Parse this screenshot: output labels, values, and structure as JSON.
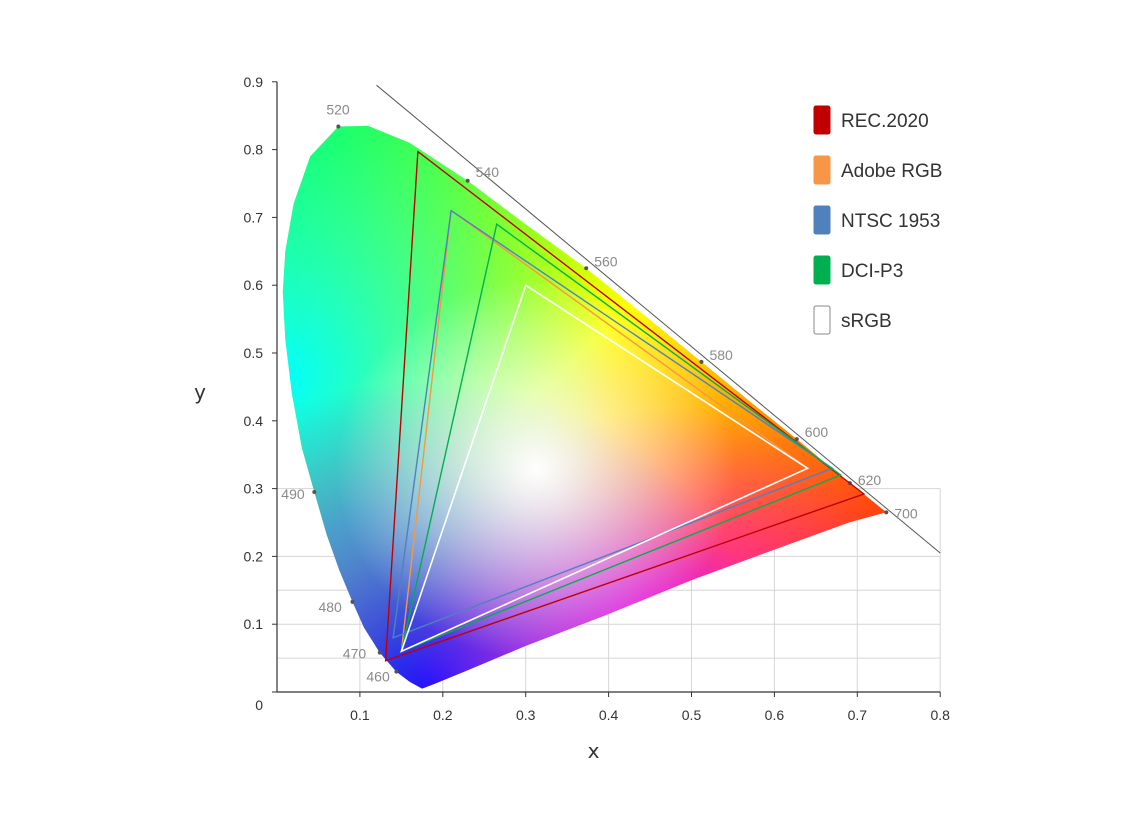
{
  "chart_data": {
    "type": "scatter",
    "title": "",
    "xlabel": "x",
    "ylabel": "y",
    "xlim": [
      0,
      0.8
    ],
    "ylim": [
      0,
      0.9
    ],
    "x_ticks": [
      "0.1",
      "0.2",
      "0.3",
      "0.4",
      "0.5",
      "0.6",
      "0.7",
      "0.8"
    ],
    "y_ticks": [
      "0",
      "0.1",
      "0.2",
      "0.3",
      "0.4",
      "0.5",
      "0.6",
      "0.7",
      "0.8",
      "0.9"
    ],
    "grid": true,
    "legend_position": "top-right",
    "spectral_locus_labels": [
      {
        "label": "460",
        "x": 0.144,
        "y": 0.03
      },
      {
        "label": "470",
        "x": 0.124,
        "y": 0.058
      },
      {
        "label": "480",
        "x": 0.091,
        "y": 0.133
      },
      {
        "label": "490",
        "x": 0.045,
        "y": 0.295
      },
      {
        "label": "520",
        "x": 0.074,
        "y": 0.834
      },
      {
        "label": "540",
        "x": 0.23,
        "y": 0.754
      },
      {
        "label": "560",
        "x": 0.373,
        "y": 0.625
      },
      {
        "label": "580",
        "x": 0.512,
        "y": 0.487
      },
      {
        "label": "600",
        "x": 0.627,
        "y": 0.373
      },
      {
        "label": "620",
        "x": 0.691,
        "y": 0.308
      },
      {
        "label": "700",
        "x": 0.735,
        "y": 0.265
      }
    ],
    "series": [
      {
        "name": "REC.2020",
        "color": "#c00000",
        "points": [
          [
            0.708,
            0.292
          ],
          [
            0.17,
            0.797
          ],
          [
            0.131,
            0.046
          ]
        ]
      },
      {
        "name": "Adobe RGB",
        "color": "#f79646",
        "points": [
          [
            0.64,
            0.33
          ],
          [
            0.21,
            0.71
          ],
          [
            0.15,
            0.06
          ]
        ]
      },
      {
        "name": "NTSC 1953",
        "color": "#4f81bd",
        "points": [
          [
            0.67,
            0.33
          ],
          [
            0.21,
            0.71
          ],
          [
            0.14,
            0.08
          ]
        ]
      },
      {
        "name": "DCI-P3",
        "color": "#00b050",
        "points": [
          [
            0.68,
            0.32
          ],
          [
            0.265,
            0.69
          ],
          [
            0.15,
            0.06
          ]
        ]
      },
      {
        "name": "sRGB",
        "color": "#ffffff",
        "points": [
          [
            0.64,
            0.33
          ],
          [
            0.3,
            0.6
          ],
          [
            0.15,
            0.06
          ]
        ]
      }
    ]
  }
}
